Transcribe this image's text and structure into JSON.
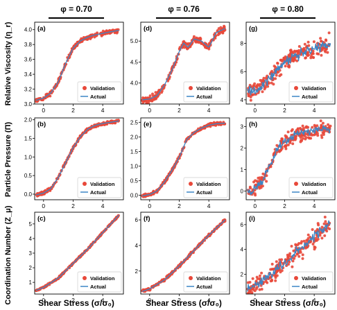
{
  "figure": {
    "columns": [
      {
        "label": "φ = 0.70"
      },
      {
        "label": "φ = 0.76"
      },
      {
        "label": "φ = 0.80"
      }
    ],
    "row_labels": [
      "Relative Viscosity (η_r)",
      "Particle Pressure (Π)",
      "Coordination Number (Z_μ)"
    ],
    "xlabel": "Shear Stress (σ/σ₀)",
    "legend": {
      "validation": "Validation",
      "actual": "Actual"
    },
    "colors": {
      "validation": "#e8483a",
      "actual": "#3b86c6"
    }
  },
  "chart_data": [
    {
      "panel": "(a)",
      "type": "scatter",
      "xlim": [
        -0.6,
        5.4
      ],
      "ylim": [
        3.0,
        4.1
      ],
      "xticks": [
        0,
        2,
        4
      ],
      "yticks": [
        3.0,
        3.2,
        3.4,
        3.6,
        3.8,
        4.0
      ],
      "ytick_labels": [
        "3.0",
        "3.2",
        "3.4",
        "3.6",
        "3.8",
        "4.0"
      ],
      "x": [
        -0.5,
        0,
        0.5,
        1,
        1.5,
        2,
        2.5,
        3,
        3.5,
        4,
        4.5,
        5.1
      ],
      "y": [
        3.05,
        3.08,
        3.15,
        3.3,
        3.55,
        3.75,
        3.85,
        3.9,
        3.93,
        3.95,
        3.97,
        3.99
      ],
      "noise": 0.02,
      "legend_position": "bottom-right"
    },
    {
      "panel": "(d)",
      "type": "scatter",
      "xlim": [
        -0.6,
        5.4
      ],
      "ylim": [
        3.5,
        5.45
      ],
      "xticks": [
        0,
        2,
        4
      ],
      "yticks": [
        4.0,
        4.5,
        5.0
      ],
      "ytick_labels": [
        "4.0",
        "4.5",
        "5.0"
      ],
      "x": [
        -0.5,
        0,
        0.5,
        1,
        1.5,
        2,
        2.3,
        2.6,
        3,
        3.5,
        4,
        4.5,
        5.1
      ],
      "y": [
        3.6,
        3.62,
        3.7,
        3.95,
        4.3,
        4.75,
        4.95,
        4.85,
        5.05,
        5.0,
        4.85,
        5.2,
        5.3
      ],
      "noise": 0.06,
      "legend_position": "bottom-right"
    },
    {
      "panel": "(g)",
      "type": "scatter",
      "xlim": [
        -0.6,
        5.4
      ],
      "ylim": [
        3.7,
        9.5
      ],
      "xticks": [
        0,
        2,
        4
      ],
      "yticks": [
        4,
        6,
        8
      ],
      "ytick_labels": [
        "4",
        "6",
        "8"
      ],
      "x": [
        -0.5,
        0,
        0.5,
        1,
        1.5,
        2,
        2.5,
        3,
        3.5,
        4,
        4.5,
        5.1
      ],
      "y": [
        4.5,
        4.6,
        5.0,
        5.5,
        6.2,
        6.7,
        7.0,
        7.2,
        7.4,
        7.6,
        7.8,
        8.0
      ],
      "noise": 0.45,
      "legend_position": "bottom-right"
    },
    {
      "panel": "(b)",
      "type": "scatter",
      "xlim": [
        -0.6,
        5.4
      ],
      "ylim": [
        -0.15,
        2.05
      ],
      "xticks": [
        0,
        2,
        4
      ],
      "yticks": [
        0.0,
        0.5,
        1.0,
        1.5,
        2.0
      ],
      "ytick_labels": [
        "0.0",
        "0.5",
        "1.0",
        "1.5",
        "2.0"
      ],
      "x": [
        -0.5,
        0,
        0.5,
        1,
        1.5,
        2,
        2.5,
        3,
        3.5,
        4,
        4.5,
        5.1
      ],
      "y": [
        -0.02,
        0.03,
        0.15,
        0.45,
        0.85,
        1.25,
        1.55,
        1.75,
        1.85,
        1.9,
        1.93,
        1.97
      ],
      "noise": 0.03,
      "legend_position": "bottom-right"
    },
    {
      "panel": "(e)",
      "type": "scatter",
      "xlim": [
        -0.6,
        5.4
      ],
      "ylim": [
        -0.15,
        2.65
      ],
      "xticks": [
        0,
        2,
        4
      ],
      "yticks": [
        0.0,
        0.5,
        1.0,
        1.5,
        2.0,
        2.5
      ],
      "ytick_labels": [
        "0.0",
        "0.5",
        "1.0",
        "1.5",
        "2.0",
        "2.5"
      ],
      "x": [
        -0.5,
        0,
        0.5,
        1,
        1.5,
        2,
        2.5,
        3,
        3.5,
        4,
        4.5,
        5.1
      ],
      "y": [
        -0.02,
        0.03,
        0.15,
        0.45,
        0.85,
        1.3,
        1.9,
        2.15,
        2.3,
        2.4,
        2.45,
        2.47
      ],
      "noise": 0.04,
      "legend_position": "bottom-right"
    },
    {
      "panel": "(h)",
      "type": "scatter",
      "xlim": [
        -0.6,
        5.4
      ],
      "ylim": [
        -0.4,
        3.4
      ],
      "xticks": [
        0,
        2,
        4
      ],
      "yticks": [
        0,
        1,
        2,
        3
      ],
      "ytick_labels": [
        "0",
        "1",
        "2",
        "3"
      ],
      "x": [
        -0.5,
        0,
        0.5,
        1,
        1.5,
        2,
        2.5,
        3,
        3.5,
        4,
        4.5,
        5.1
      ],
      "y": [
        -0.05,
        0.1,
        0.5,
        1.2,
        1.9,
        2.3,
        2.5,
        2.65,
        2.75,
        2.8,
        2.85,
        2.9
      ],
      "noise": 0.25,
      "legend_position": "bottom-right"
    },
    {
      "panel": "(c)",
      "type": "scatter",
      "xlim": [
        -0.6,
        5.4
      ],
      "ylim": [
        0.2,
        5.8
      ],
      "xticks": [
        0,
        2,
        4
      ],
      "yticks": [
        1,
        2,
        3,
        4,
        5
      ],
      "ytick_labels": [
        "1",
        "2",
        "3",
        "4",
        "5"
      ],
      "x": [
        -0.5,
        0,
        1,
        2,
        3,
        4,
        5.1
      ],
      "y": [
        0.45,
        0.65,
        1.3,
        2.3,
        3.3,
        4.4,
        5.6
      ],
      "noise": 0.04,
      "legend_position": "bottom-right"
    },
    {
      "panel": "(f)",
      "type": "scatter",
      "xlim": [
        -0.6,
        5.4
      ],
      "ylim": [
        0.2,
        6.6
      ],
      "xticks": [
        0,
        2,
        4
      ],
      "yticks": [
        2,
        4,
        6
      ],
      "ytick_labels": [
        "2",
        "4",
        "6"
      ],
      "x": [
        -0.5,
        0,
        1,
        2,
        3,
        4,
        5.1
      ],
      "y": [
        0.4,
        0.6,
        1.3,
        2.4,
        3.6,
        4.8,
        6.0
      ],
      "noise": 0.08,
      "legend_position": "bottom-right"
    },
    {
      "panel": "(i)",
      "type": "scatter",
      "xlim": [
        -0.6,
        5.4
      ],
      "ylim": [
        0.4,
        7.0
      ],
      "xticks": [
        0,
        2,
        4
      ],
      "yticks": [
        2,
        4,
        6
      ],
      "ytick_labels": [
        "2",
        "4",
        "6"
      ],
      "x": [
        -0.5,
        0,
        1,
        2,
        3,
        4,
        5.1
      ],
      "y": [
        0.8,
        1.1,
        1.9,
        3.0,
        4.0,
        5.0,
        6.1
      ],
      "noise": 0.55,
      "legend_position": "bottom-right"
    }
  ]
}
